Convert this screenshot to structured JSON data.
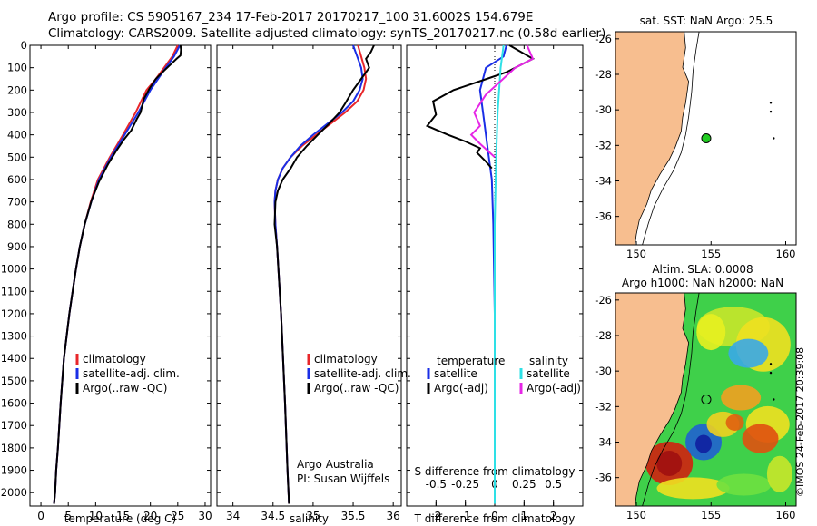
{
  "header": {
    "line1": "Argo profile: CS 5905167_234 17-Feb-2017 20170217_100 31.6002S 154.679E",
    "line2": "Climatology: CARS2009. Satellite-adjusted climatology: synTS_20170217.nc (0.58d earlier)"
  },
  "colors": {
    "climatology": "#e8262a",
    "satellite_clim": "#1a2ee6",
    "argo": "#000000",
    "salinity_sat": "#2ee0e6",
    "salinity_argo": "#e626e6",
    "land": "#f7be8f",
    "float_marker": "#22cc22"
  },
  "chart_data": [
    {
      "type": "line",
      "panel": "temperature",
      "xlabel": "temperature (deg C)",
      "ylabel": "",
      "xlim": [
        -2,
        31
      ],
      "ylim": [
        2060,
        0
      ],
      "x_ticks": [
        "0",
        "5",
        "10",
        "15",
        "20",
        "25",
        "30"
      ],
      "y_ticks": [
        "0",
        "100",
        "200",
        "300",
        "400",
        "500",
        "600",
        "700",
        "800",
        "900",
        "1000",
        "1100",
        "1200",
        "1300",
        "1400",
        "1500",
        "1600",
        "1700",
        "1800",
        "1900",
        "2000"
      ],
      "legend": [
        "climatology",
        "satellite-adj. clim.",
        "Argo(..raw -QC)"
      ],
      "series": [
        {
          "name": "climatology",
          "color_key": "climatology",
          "x": [
            25.0,
            24.0,
            22.5,
            21.0,
            19.3,
            17.3,
            15.0,
            12.6,
            10.4,
            9.1,
            8.0,
            7.1,
            6.4,
            5.8,
            5.2,
            4.7,
            4.2,
            3.6,
            3.1,
            2.8,
            2.6,
            2.4
          ],
          "y": [
            0,
            50,
            100,
            150,
            200,
            300,
            400,
            500,
            600,
            700,
            800,
            900,
            1000,
            1100,
            1200,
            1300,
            1400,
            1600,
            1800,
            1900,
            2000,
            2050
          ]
        },
        {
          "name": "satellite-adj. clim.",
          "color_key": "satellite_clim",
          "x": [
            25.4,
            24.3,
            22.8,
            21.4,
            20.0,
            17.8,
            15.3,
            12.8,
            10.6,
            9.2,
            8.0,
            7.1,
            6.4,
            5.8,
            5.2,
            4.7,
            4.2,
            3.6,
            3.1,
            2.8,
            2.6,
            2.4
          ],
          "y": [
            0,
            50,
            100,
            150,
            200,
            300,
            400,
            500,
            600,
            700,
            800,
            900,
            1000,
            1100,
            1200,
            1300,
            1400,
            1600,
            1800,
            1900,
            2000,
            2050
          ]
        },
        {
          "name": "Argo(..raw -QC)",
          "color_key": "argo",
          "x": [
            25.5,
            25.6,
            25.5,
            24.8,
            23.5,
            22.2,
            21.0,
            19.9,
            18.8,
            18.2,
            17.5,
            16.5,
            15.2,
            13.8,
            12.3,
            10.6,
            9.3,
            8.0,
            7.1,
            6.4,
            5.8,
            5.2,
            4.7,
            4.2,
            3.6,
            3.1,
            2.8,
            2.6,
            2.4
          ],
          "y": [
            0,
            20,
            45,
            60,
            90,
            120,
            150,
            190,
            240,
            300,
            330,
            380,
            420,
            470,
            530,
            610,
            690,
            800,
            900,
            1000,
            1100,
            1200,
            1300,
            1400,
            1600,
            1800,
            1900,
            2000,
            2050
          ]
        }
      ]
    },
    {
      "type": "line",
      "panel": "salinity",
      "xlabel": "salinity",
      "ylabel": "",
      "xlim": [
        33.8,
        36.1
      ],
      "ylim": [
        2060,
        0
      ],
      "x_ticks": [
        "34",
        "34.5",
        "35",
        "35.5",
        "36"
      ],
      "legend": [
        "climatology",
        "satellite-adj. clim.",
        "Argo(..raw -QC)"
      ],
      "annotation": [
        "Argo Australia",
        "PI: Susan Wijffels"
      ],
      "series": [
        {
          "name": "climatology",
          "color_key": "climatology",
          "x": [
            35.56,
            35.6,
            35.64,
            35.66,
            35.63,
            35.55,
            35.4,
            35.22,
            35.04,
            34.86,
            34.72,
            34.62,
            34.56,
            34.53,
            34.52,
            34.53,
            34.55,
            34.6,
            34.65,
            34.68,
            34.7
          ],
          "y": [
            0,
            50,
            100,
            150,
            200,
            250,
            300,
            350,
            400,
            450,
            500,
            550,
            600,
            650,
            700,
            800,
            900,
            1200,
            1600,
            1900,
            2050
          ]
        },
        {
          "name": "satellite-adj. clim.",
          "color_key": "satellite_clim",
          "x": [
            35.5,
            35.55,
            35.6,
            35.62,
            35.58,
            35.5,
            35.36,
            35.18,
            35.0,
            34.84,
            34.72,
            34.62,
            34.56,
            34.53,
            34.52,
            34.53,
            34.55,
            34.6,
            34.65,
            34.68,
            34.7
          ],
          "y": [
            0,
            50,
            100,
            150,
            200,
            250,
            300,
            350,
            400,
            450,
            500,
            550,
            600,
            650,
            700,
            800,
            900,
            1200,
            1600,
            1900,
            2050
          ]
        },
        {
          "name": "Argo(..raw -QC)",
          "color_key": "argo",
          "x": [
            35.76,
            35.72,
            35.66,
            35.7,
            35.6,
            35.5,
            35.4,
            35.33,
            35.2,
            35.06,
            34.92,
            34.8,
            34.72,
            34.62,
            34.56,
            34.53,
            34.52,
            34.55,
            34.6,
            34.65,
            34.68,
            34.7
          ],
          "y": [
            0,
            30,
            60,
            100,
            150,
            200,
            260,
            300,
            350,
            400,
            450,
            500,
            550,
            600,
            650,
            700,
            800,
            900,
            1200,
            1600,
            1900,
            2050
          ]
        }
      ]
    },
    {
      "type": "line",
      "panel": "difference",
      "xlabel": "T difference from climatology",
      "ylabel": "",
      "top_label": "S difference from climatology",
      "xlim": [
        -3,
        3
      ],
      "ylim": [
        2060,
        0
      ],
      "x_ticks": [
        "-2",
        "-1",
        "0",
        "1",
        "2"
      ],
      "top_ticks": [
        "-0.5",
        "-0.25",
        "0",
        "0.25",
        "0.5"
      ],
      "legend_temperature_title": "temperature",
      "legend_salinity_title": "salinity",
      "legend": [
        "satellite",
        "Argo(-adj)",
        "satellite",
        "Argo(-adj)"
      ],
      "series": [
        {
          "name": "temperature satellite",
          "color_key": "satellite_clim",
          "x": [
            0.4,
            0.3,
            -0.3,
            -0.5,
            -0.4,
            -0.3,
            -0.2,
            -0.1,
            -0.05,
            0,
            0,
            0
          ],
          "y": [
            0,
            50,
            100,
            200,
            300,
            400,
            500,
            600,
            800,
            1200,
            1600,
            2050
          ]
        },
        {
          "name": "temperature Argo(-adj)",
          "color_key": "argo",
          "x": [
            0.5,
            1.3,
            0.4,
            -0.5,
            -1.4,
            -2.1,
            -2.0,
            -2.3,
            -1.6,
            -1.0,
            -0.5,
            -0.6,
            -0.3,
            -0.1
          ],
          "y": [
            0,
            60,
            120,
            160,
            200,
            250,
            310,
            360,
            400,
            430,
            460,
            480,
            520,
            550
          ]
        },
        {
          "name": "salinity satellite",
          "color_key": "salinity_sat",
          "x": [
            0.3,
            0.2,
            0.1,
            0.05,
            0,
            0,
            0,
            0
          ],
          "y": [
            0,
            100,
            300,
            500,
            800,
            1200,
            1600,
            2050
          ]
        },
        {
          "name": "salinity Argo(-adj)",
          "color_key": "salinity_argo",
          "x": [
            1.1,
            1.3,
            0.7,
            0.2,
            -0.3,
            -0.7,
            -0.5,
            -0.8,
            -0.5,
            0
          ],
          "y": [
            0,
            60,
            100,
            160,
            220,
            300,
            360,
            400,
            440,
            500
          ]
        }
      ]
    }
  ],
  "maps": {
    "sst": {
      "title": "sat. SST: NaN Argo: 25.5",
      "lon_ticks": [
        "150",
        "155",
        "160"
      ],
      "lat_ticks": [
        "-26",
        "-28",
        "-30",
        "-32",
        "-34",
        "-36"
      ],
      "float_lon": 154.679,
      "float_lat": -31.6002
    },
    "sla": {
      "title1": "Altim. SLA: 0.0008",
      "title2": "Argo h1000: NaN h2000: NaN",
      "lon_ticks": [
        "150",
        "155",
        "160"
      ],
      "lat_ticks": [
        "-26",
        "-28",
        "-30",
        "-32",
        "-34",
        "-36"
      ]
    }
  },
  "footer": {
    "credit": "©IMOS 24-Feb-2017 20:39:08"
  }
}
